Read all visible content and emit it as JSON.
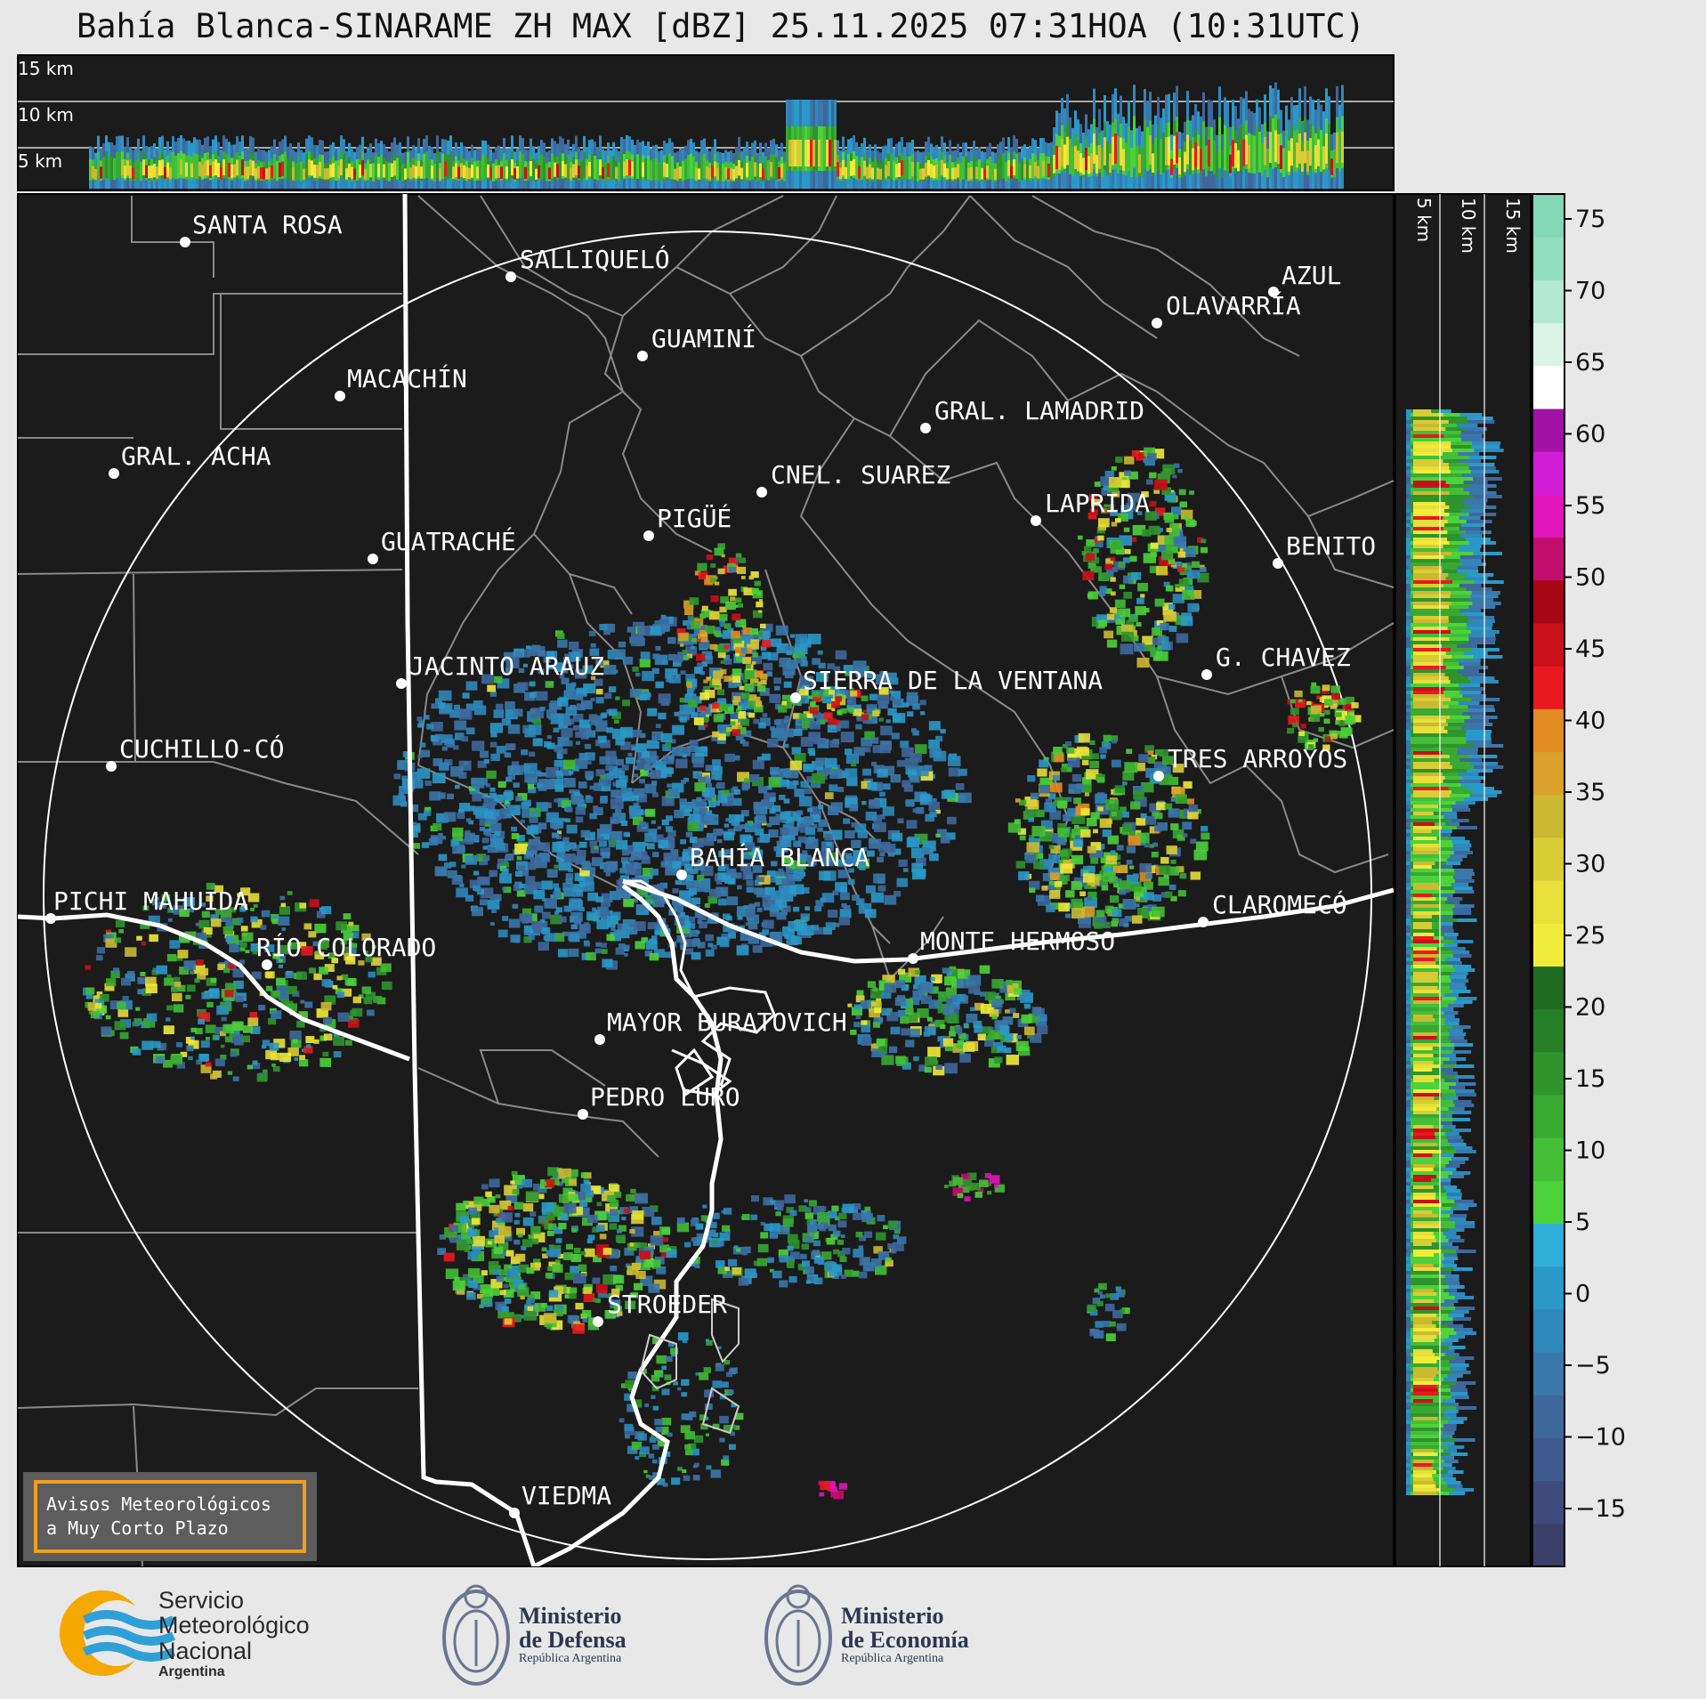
{
  "title": "Bahía Blanca-SINARAME ZH MAX [dBZ] 25.11.2025 07:31HOA (10:31UTC)",
  "top_profile_labels": [
    "15 km",
    "10 km",
    "5 km"
  ],
  "side_profile_labels": [
    "5 km",
    "10 km",
    "15 km"
  ],
  "colorbar": {
    "ticks": [
      "75",
      "70",
      "65",
      "60",
      "55",
      "50",
      "45",
      "40",
      "35",
      "30",
      "25",
      "20",
      "15",
      "10",
      "5",
      "0",
      "−5",
      "−10",
      "−15"
    ],
    "colors": [
      "#3b3e68",
      "#3e4c7c",
      "#3f5a8e",
      "#3e689c",
      "#3a77aa",
      "#2f88bb",
      "#2a99c9",
      "#2eaed8",
      "#4cd23a",
      "#43be37",
      "#38a932",
      "#2f942c",
      "#267e26",
      "#1f6b21",
      "#f1ec3a",
      "#e7df3a",
      "#d9cd35",
      "#cbb932",
      "#d9a02a",
      "#e28b22",
      "#e9191f",
      "#c9101a",
      "#a60714",
      "#c30d6e",
      "#e115b9",
      "#d21cd6",
      "#a112a4",
      "#ffffff",
      "#d9f3e7",
      "#b2e8d2",
      "#92dec0",
      "#83d7b6"
    ]
  },
  "cities": [
    {
      "name": "SANTA ROSA"
    },
    {
      "name": "SALLIQUELÓ"
    },
    {
      "name": "AZUL"
    },
    {
      "name": "OLAVARRÍA"
    },
    {
      "name": "GUAMINÍ"
    },
    {
      "name": "MACACHÍN"
    },
    {
      "name": "GRAL. LAMADRID"
    },
    {
      "name": "GRAL. ACHA"
    },
    {
      "name": "CNEL. SUAREZ"
    },
    {
      "name": "LAPRIDA"
    },
    {
      "name": "PIGÜÉ"
    },
    {
      "name": "GUATRACHÉ"
    },
    {
      "name": "BENITO"
    },
    {
      "name": "G. CHAVEZ"
    },
    {
      "name": "JACINTO ARAUZ"
    },
    {
      "name": "SIERRA DE LA VENTANA"
    },
    {
      "name": "CUCHILLO-CÓ"
    },
    {
      "name": "TRES ARROYOS"
    },
    {
      "name": "BAHÍA BLANCA"
    },
    {
      "name": "PICHI MAHUIDA"
    },
    {
      "name": "CLAROMECÓ"
    },
    {
      "name": "MONTE HERMOSO"
    },
    {
      "name": "RÍO COLORADO"
    },
    {
      "name": "MAYOR BURATOVICH"
    },
    {
      "name": "PEDRO LURO"
    },
    {
      "name": "STROEDER"
    },
    {
      "name": "VIEDMA"
    }
  ],
  "warning_box": {
    "line1": "Avisos Meteorológicos",
    "line2": "a Muy Corto Plazo"
  },
  "footer": {
    "smn": {
      "line1": "Servicio",
      "line2": "Meteorológico",
      "line3": "Nacional",
      "line4": "Argentina"
    },
    "defensa": {
      "line1": "Ministerio",
      "line2": "de Defensa",
      "line3": "República Argentina"
    },
    "economia": {
      "line1": "Ministerio",
      "line2": "de Economía",
      "line3": "República Argentina"
    }
  },
  "colors": {
    "map_bg": "#1b1b1b",
    "page_bg": "#e8e8e8",
    "accent_box": "#f0a020",
    "smn_blue": "#2f9fd8",
    "smn_yellow": "#f5a800"
  }
}
